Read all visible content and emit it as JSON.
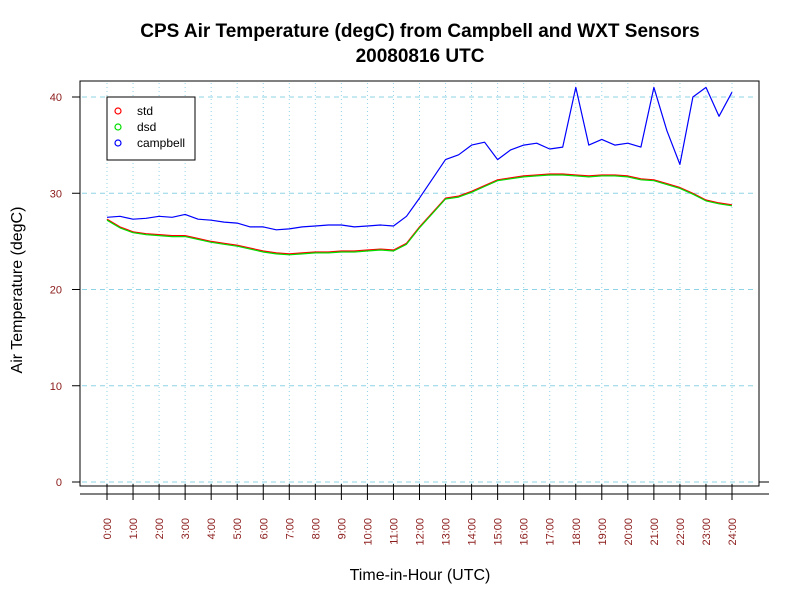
{
  "chart_data": {
    "type": "line",
    "title": "CPS Air Temperature (degC) from Campbell and WXT Sensors",
    "subtitle": "20080816  UTC",
    "xlabel": "Time-in-Hour (UTC)",
    "ylabel": "Air Temperature (degC)",
    "xlim": [
      0,
      24
    ],
    "ylim": [
      0,
      40
    ],
    "grid": true,
    "legend_position": "top-left",
    "x_ticks": [
      "0:00",
      "1:00",
      "2:00",
      "3:00",
      "4:00",
      "5:00",
      "6:00",
      "7:00",
      "8:00",
      "9:00",
      "10:00",
      "11:00",
      "12:00",
      "13:00",
      "14:00",
      "15:00",
      "16:00",
      "17:00",
      "18:00",
      "19:00",
      "20:00",
      "21:00",
      "22:00",
      "23:00",
      "24:00"
    ],
    "y_ticks": [
      0,
      10,
      20,
      30,
      40
    ],
    "x": [
      0,
      0.5,
      1,
      1.5,
      2,
      2.5,
      3,
      3.5,
      4,
      4.5,
      5,
      5.5,
      6,
      6.5,
      7,
      7.5,
      8,
      8.5,
      9,
      9.5,
      10,
      10.5,
      11,
      11.5,
      12,
      12.5,
      13,
      13.5,
      14,
      14.5,
      15,
      15.5,
      16,
      16.5,
      17,
      17.5,
      18,
      18.5,
      19,
      19.5,
      20,
      20.5,
      21,
      21.5,
      22,
      22.5,
      23,
      23.5,
      24
    ],
    "series": [
      {
        "name": "std",
        "color": "#ff0000",
        "values": [
          27.3,
          26.5,
          26.0,
          25.8,
          25.7,
          25.6,
          25.6,
          25.3,
          25.0,
          24.8,
          24.6,
          24.3,
          24.0,
          23.8,
          23.7,
          23.8,
          23.9,
          23.9,
          24.0,
          24.0,
          24.1,
          24.2,
          24.1,
          24.8,
          26.5,
          28.0,
          29.5,
          29.7,
          30.2,
          30.8,
          31.4,
          31.6,
          31.8,
          31.9,
          32.0,
          32.0,
          31.9,
          31.8,
          31.9,
          31.9,
          31.8,
          31.5,
          31.4,
          31.0,
          30.6,
          30.0,
          29.3,
          29.0,
          28.8
        ]
      },
      {
        "name": "dsd",
        "color": "#00dd00",
        "values": [
          27.2,
          26.4,
          25.9,
          25.7,
          25.6,
          25.5,
          25.5,
          25.2,
          24.9,
          24.7,
          24.5,
          24.2,
          23.9,
          23.7,
          23.6,
          23.7,
          23.8,
          23.8,
          23.9,
          23.9,
          24.0,
          24.1,
          24.0,
          24.7,
          26.4,
          27.9,
          29.4,
          29.6,
          30.1,
          30.7,
          31.3,
          31.5,
          31.7,
          31.8,
          31.9,
          31.9,
          31.8,
          31.7,
          31.8,
          31.8,
          31.7,
          31.4,
          31.3,
          30.9,
          30.5,
          29.9,
          29.2,
          28.9,
          28.7
        ]
      },
      {
        "name": "campbell",
        "color": "#0000ff",
        "values": [
          27.5,
          27.6,
          27.3,
          27.4,
          27.6,
          27.5,
          27.8,
          27.3,
          27.2,
          27.0,
          26.9,
          26.5,
          26.5,
          26.2,
          26.3,
          26.5,
          26.6,
          26.7,
          26.7,
          26.5,
          26.6,
          26.7,
          26.6,
          27.6,
          29.5,
          31.5,
          33.5,
          34.0,
          35.0,
          35.3,
          33.5,
          34.5,
          35.0,
          35.2,
          34.6,
          34.8,
          41.0,
          35.0,
          35.6,
          35.0,
          35.2,
          34.8,
          41.0,
          36.5,
          33.0,
          40.0,
          41.0,
          38.0,
          40.5
        ]
      }
    ]
  }
}
